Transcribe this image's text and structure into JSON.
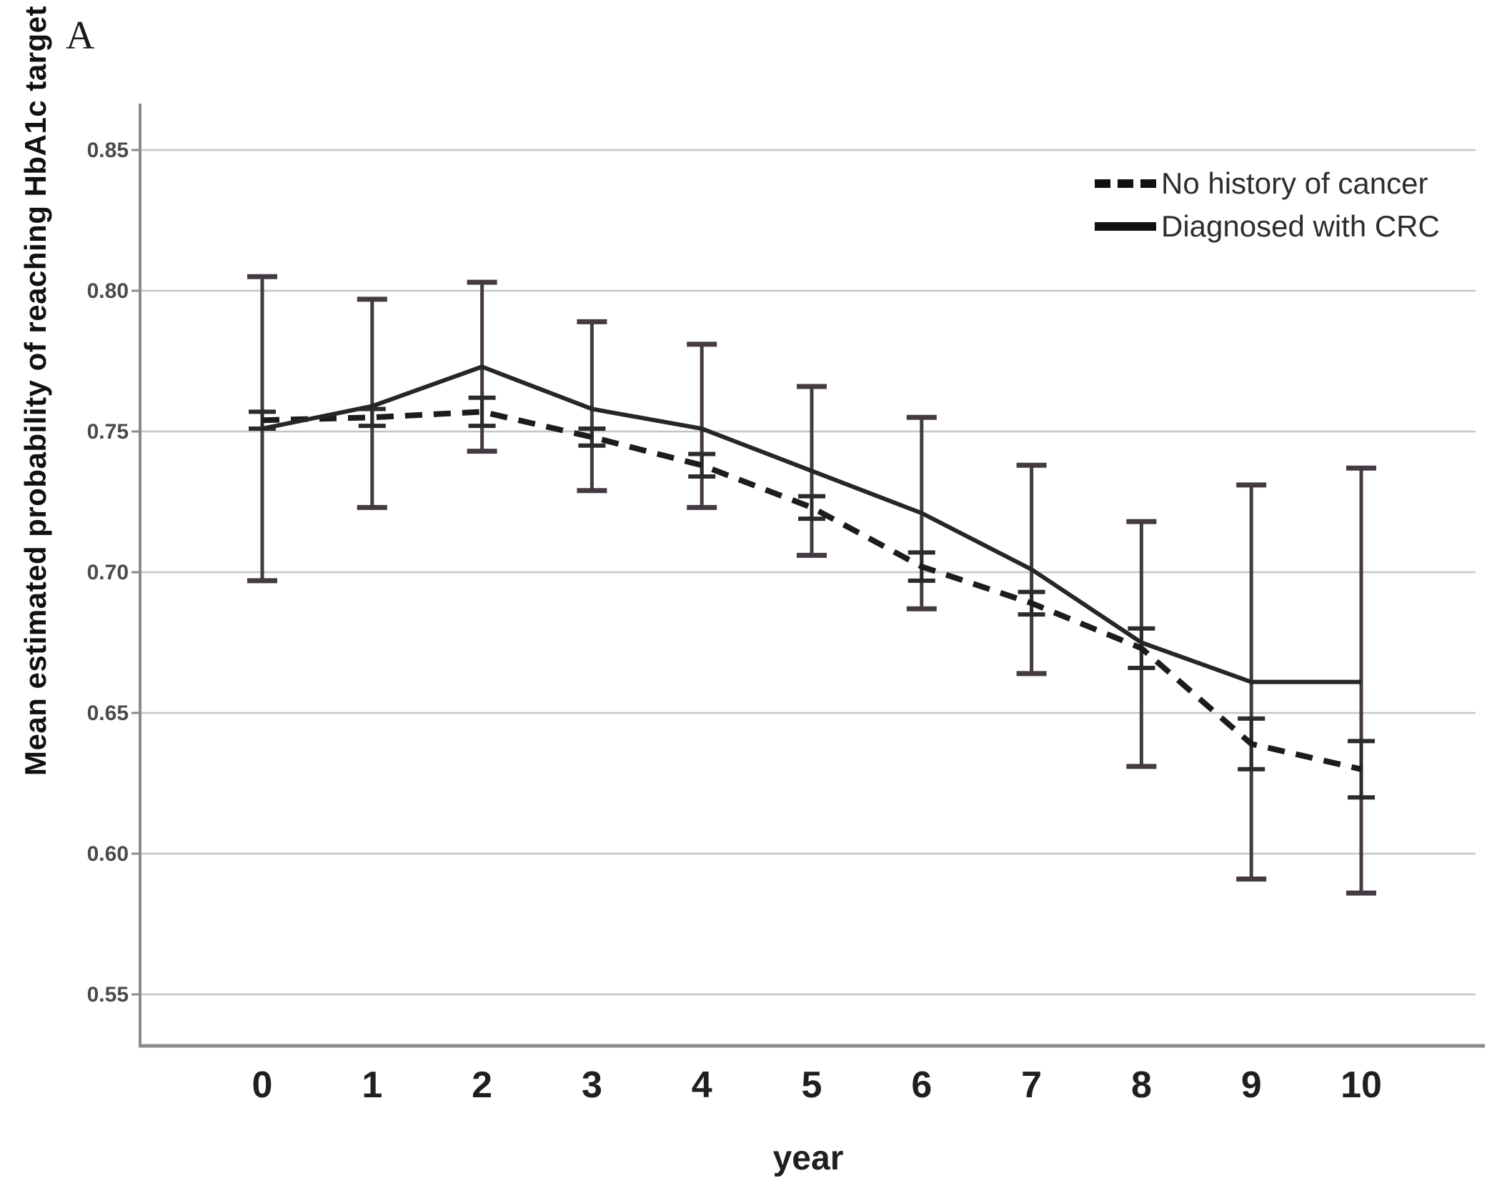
{
  "panel_label": "A",
  "chart_data": {
    "type": "line",
    "title": "",
    "xlabel": "year",
    "ylabel": "Mean estimated probability of reaching HbA1c target",
    "x": [
      0,
      1,
      2,
      3,
      4,
      5,
      6,
      7,
      8,
      9,
      10
    ],
    "x_tick_labels": [
      "0",
      "1",
      "2",
      "3",
      "4",
      "5",
      "6",
      "7",
      "8",
      "9",
      "10"
    ],
    "y_ticks": [
      0.85,
      0.8,
      0.75,
      0.7,
      0.65,
      0.6,
      0.55
    ],
    "y_tick_labels": [
      "0.85",
      "0.80",
      "0.75",
      "0.70",
      "0.65",
      "0.60",
      "0.55"
    ],
    "ylim": [
      0.528,
      0.866
    ],
    "grid": "horizontal",
    "legend_position": "top-right-inside",
    "error_bars": true,
    "colors": {
      "gridline": "#c6c6c6",
      "axis": "#8a8a8a",
      "tick_label": "#4a4a4a",
      "x_tick_label": "#1f1f1f"
    },
    "series": [
      {
        "name": "No history of cancer",
        "line_style": "dashed",
        "color": "#1c1c1c",
        "errorbar_color": "#2b2b2b",
        "values": [
          0.754,
          0.755,
          0.757,
          0.748,
          0.738,
          0.723,
          0.702,
          0.689,
          0.673,
          0.639,
          0.63
        ],
        "ci_low": [
          0.751,
          0.752,
          0.752,
          0.745,
          0.734,
          0.719,
          0.697,
          0.685,
          0.666,
          0.63,
          0.62
        ],
        "ci_high": [
          0.757,
          0.758,
          0.762,
          0.751,
          0.742,
          0.727,
          0.707,
          0.693,
          0.68,
          0.648,
          0.64
        ]
      },
      {
        "name": "Diagnosed with CRC",
        "line_style": "solid",
        "color": "#262626",
        "errorbar_color": "#453a42",
        "values": [
          0.751,
          0.759,
          0.773,
          0.758,
          0.751,
          0.736,
          0.721,
          0.701,
          0.675,
          0.661,
          0.661
        ],
        "ci_low": [
          0.697,
          0.723,
          0.743,
          0.729,
          0.723,
          0.706,
          0.687,
          0.664,
          0.631,
          0.591,
          0.586
        ],
        "ci_high": [
          0.805,
          0.797,
          0.803,
          0.789,
          0.781,
          0.766,
          0.755,
          0.738,
          0.718,
          0.731,
          0.737
        ]
      }
    ]
  }
}
